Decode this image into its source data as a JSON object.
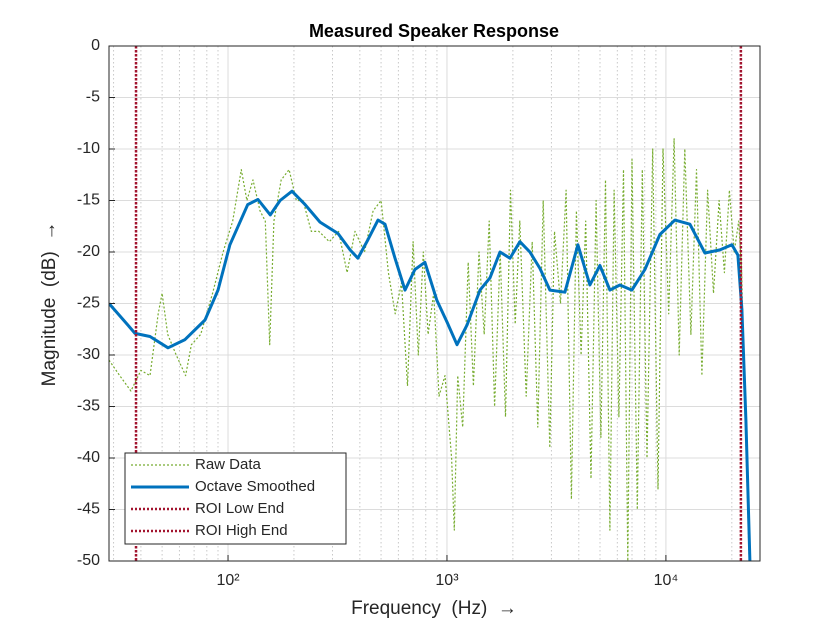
{
  "chart_data": {
    "type": "line",
    "title": "Measured Speaker Response",
    "xlabel": "Frequency  (Hz)  →",
    "ylabel": "Magnitude  (dB)  →",
    "xscale": "log",
    "xlim": [
      28.6,
      26900
    ],
    "ylim": [
      -50,
      0
    ],
    "xticks": [
      {
        "value": 100,
        "label": "10²"
      },
      {
        "value": 1000,
        "label": "10³"
      },
      {
        "value": 10000,
        "label": "10⁴"
      }
    ],
    "yticks": [
      0,
      -5,
      -10,
      -15,
      -20,
      -25,
      -30,
      -35,
      -40,
      -45,
      -50
    ],
    "grid": true,
    "minor_grid": true,
    "legend": "lower left",
    "series": [
      {
        "name": "Raw Data",
        "color": "#77ac30",
        "style": "dotted",
        "width": 1.2,
        "x": [
          28.6,
          32,
          36,
          40,
          44,
          48,
          50,
          53,
          58,
          64,
          68,
          75,
          85,
          95,
          105,
          115,
          122,
          130,
          140,
          148,
          155,
          162,
          175,
          190,
          205,
          220,
          240,
          260,
          290,
          320,
          350,
          380,
          420,
          460,
          500,
          540,
          580,
          620,
          660,
          700,
          740,
          780,
          820,
          870,
          920,
          980,
          1050,
          1080,
          1120,
          1180,
          1250,
          1320,
          1400,
          1480,
          1560,
          1650,
          1750,
          1850,
          1950,
          2050,
          2150,
          2300,
          2450,
          2600,
          2750,
          2950,
          3100,
          3300,
          3500,
          3700,
          3900,
          4100,
          4300,
          4550,
          4800,
          5050,
          5300,
          5550,
          5800,
          6100,
          6400,
          6700,
          7000,
          7400,
          7800,
          8200,
          8700,
          9200,
          9700,
          10300,
          10900,
          11500,
          12200,
          13000,
          13800,
          14600,
          15500,
          16500,
          17500,
          18500,
          19500,
          20500,
          21500,
          22200,
          23000,
          24000
        ],
        "values": [
          -30.5,
          -32,
          -33.5,
          -31.5,
          -32,
          -26,
          -24,
          -28,
          -30,
          -32,
          -29,
          -28,
          -24,
          -20,
          -17,
          -12,
          -15,
          -13,
          -16,
          -17,
          -29,
          -17,
          -13,
          -12,
          -15,
          -15,
          -18,
          -18,
          -19,
          -18,
          -22,
          -18,
          -20,
          -16,
          -15,
          -22,
          -26,
          -23,
          -33,
          -19,
          -30,
          -20,
          -28,
          -24,
          -34,
          -32,
          -40,
          -47,
          -32,
          -37,
          -21,
          -33,
          -20,
          -28,
          -17,
          -35,
          -20,
          -36,
          -14,
          -27,
          -17,
          -34,
          -19,
          -37,
          -15,
          -39,
          -18,
          -25,
          -14,
          -44,
          -16,
          -30,
          -17,
          -42,
          -15,
          -38,
          -13,
          -47,
          -14,
          -36,
          -12,
          -50,
          -11,
          -45,
          -12,
          -40,
          -10,
          -43,
          -10,
          -26,
          -9,
          -30,
          -10,
          -28,
          -12,
          -32,
          -14,
          -24,
          -15,
          -22,
          -14,
          -20,
          -17,
          -22,
          -36,
          -50
        ]
      },
      {
        "name": "Octave Smoothed",
        "color": "#0072bd",
        "style": "solid",
        "width": 3,
        "x": [
          28.6,
          33.9,
          37.6,
          44,
          53.2,
          63.6,
          78.5,
          90,
          102,
          123,
          137,
          156,
          173,
          196,
          225,
          263,
          318,
          361,
          392,
          436,
          484,
          521,
          579,
          643,
          714,
          793,
          900,
          1000,
          1111,
          1234,
          1415,
          1572,
          1746,
          1940,
          2154,
          2393,
          2659,
          2953,
          3458,
          3965,
          4498,
          4995,
          5550,
          6166,
          6994,
          8021,
          9390,
          10990,
          12870,
          15070,
          17640,
          20020,
          21320,
          22230,
          23200,
          24200
        ],
        "values": [
          -25,
          -26.8,
          -27.9,
          -28.2,
          -29.3,
          -28.5,
          -26.6,
          -23.7,
          -19.3,
          -15.4,
          -14.9,
          -16.4,
          -15,
          -14.1,
          -15.4,
          -17.1,
          -18.2,
          -19.8,
          -20.6,
          -18.8,
          -16.9,
          -17.3,
          -20.6,
          -23.7,
          -21.7,
          -21,
          -24.7,
          -26.8,
          -29,
          -27.1,
          -23.7,
          -22.5,
          -20,
          -20.6,
          -19,
          -20,
          -21.6,
          -23.7,
          -23.9,
          -19.3,
          -23.2,
          -21.3,
          -23.7,
          -23.2,
          -23.7,
          -21.7,
          -18.3,
          -16.9,
          -17.3,
          -20.1,
          -19.8,
          -19.3,
          -20.3,
          -25.6,
          -36.3,
          -50
        ]
      }
    ],
    "vlines": [
      {
        "name": "ROI Low End",
        "x": 38,
        "color": "#a2142f"
      },
      {
        "name": "ROI High End",
        "x": 22000,
        "color": "#a2142f"
      }
    ]
  }
}
